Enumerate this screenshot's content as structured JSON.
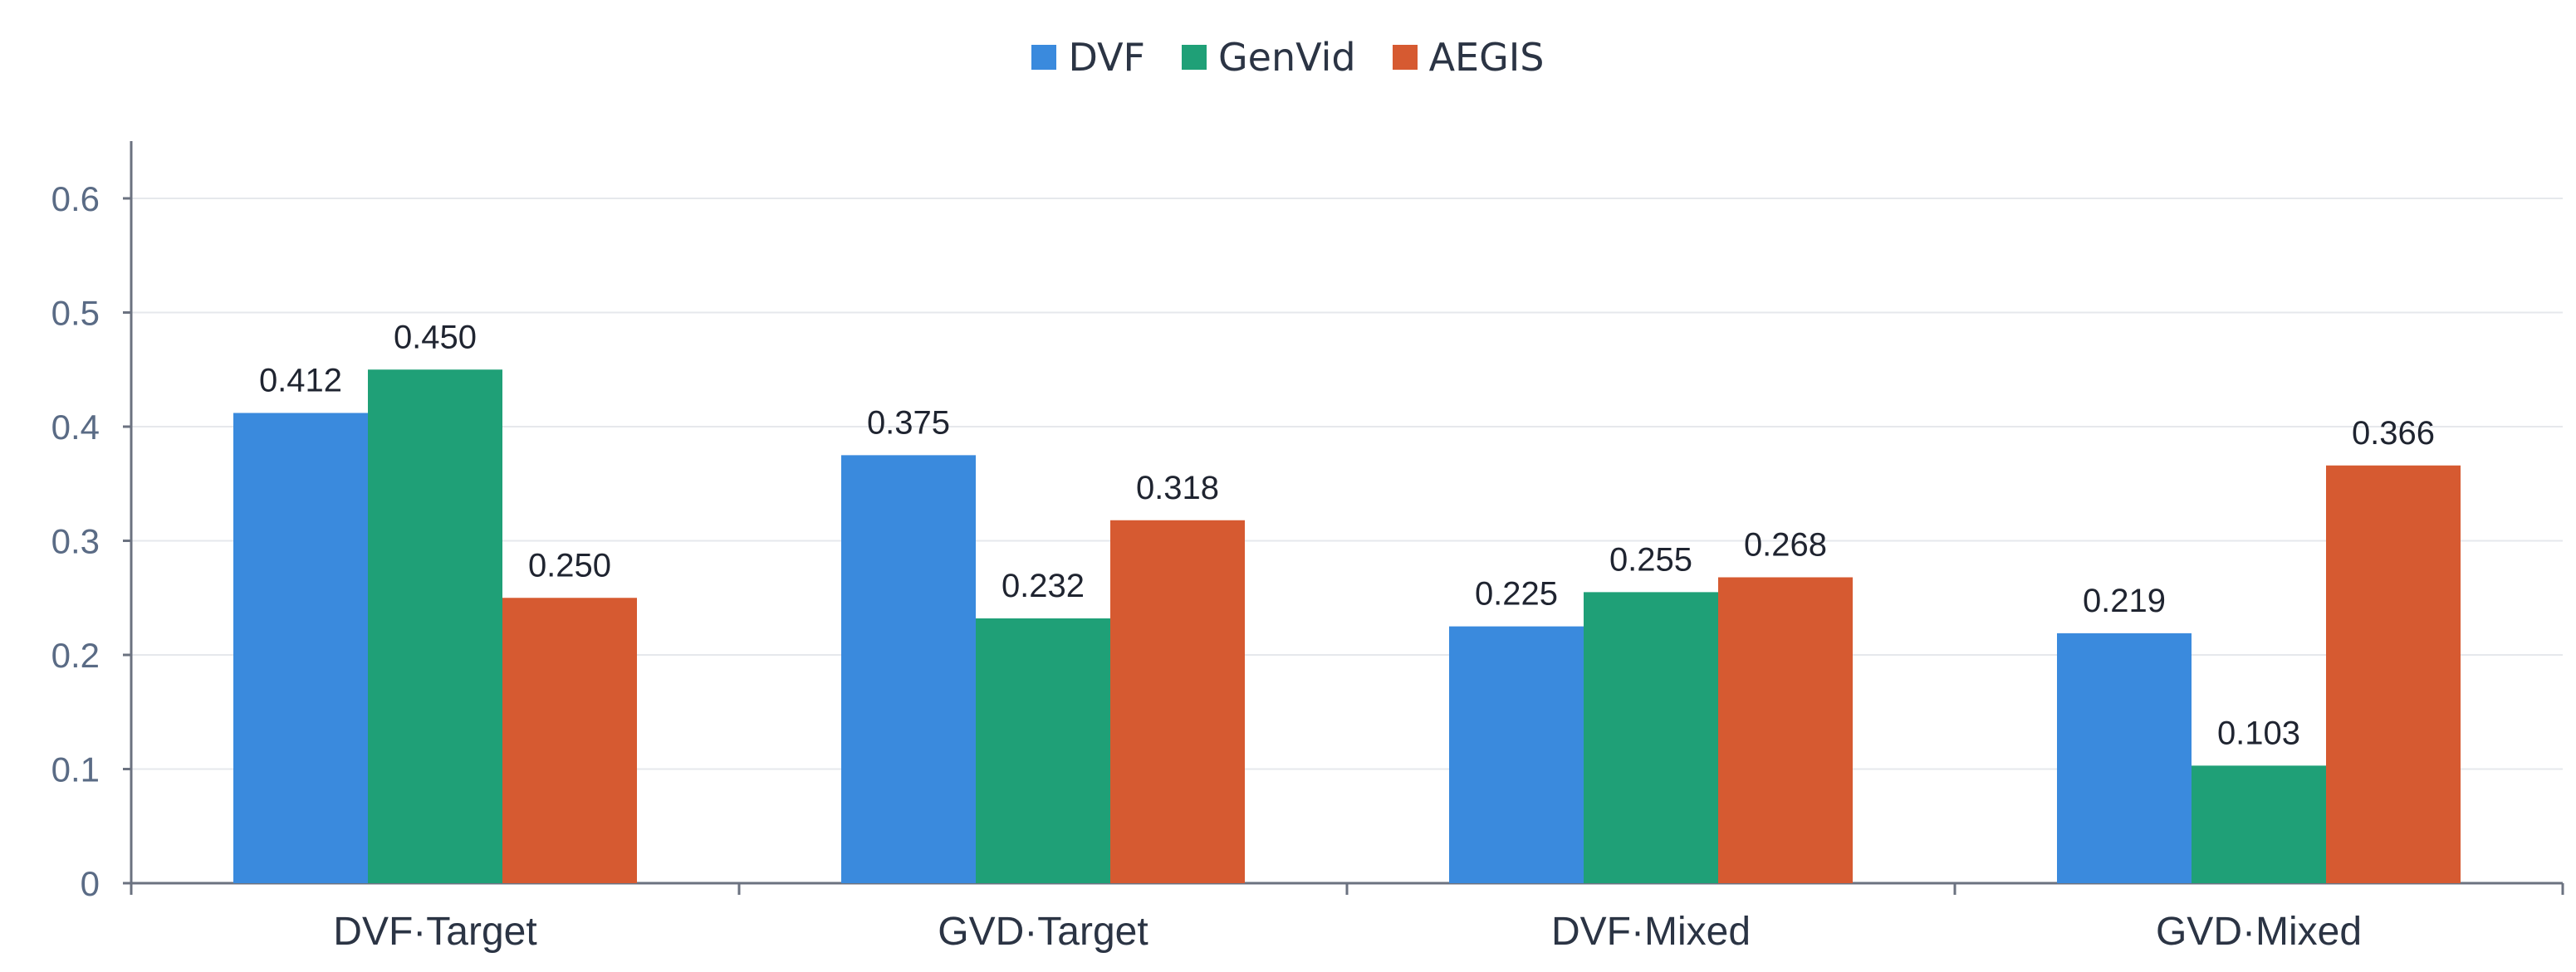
{
  "chart_data": {
    "type": "bar",
    "categories": [
      "DVF·Target",
      "GVD·Target",
      "DVF·Mixed",
      "GVD·Mixed"
    ],
    "series": [
      {
        "name": "DVF",
        "color": "#3a8add",
        "values": [
          0.412,
          0.375,
          0.225,
          0.219
        ],
        "labels": [
          "0.412",
          "0.375",
          "0.225",
          "0.219"
        ]
      },
      {
        "name": "GenVid",
        "color": "#1fa077",
        "values": [
          0.45,
          0.232,
          0.255,
          0.103
        ],
        "labels": [
          "0.450",
          "0.232",
          "0.255",
          "0.103"
        ]
      },
      {
        "name": "AEGIS",
        "color": "#d65a31",
        "values": [
          0.25,
          0.318,
          0.268,
          0.366
        ],
        "labels": [
          "0.250",
          "0.318",
          "0.268",
          "0.366"
        ]
      }
    ],
    "ylim": [
      0,
      0.65
    ],
    "yticks": [
      0,
      0.1,
      0.2,
      0.3,
      0.4,
      0.5,
      0.6
    ],
    "ytick_labels": [
      "0",
      "0.1",
      "0.2",
      "0.3",
      "0.4",
      "0.5",
      "0.6"
    ],
    "grid": true,
    "legend_position": "top-center",
    "title": "",
    "xlabel": "",
    "ylabel": ""
  }
}
